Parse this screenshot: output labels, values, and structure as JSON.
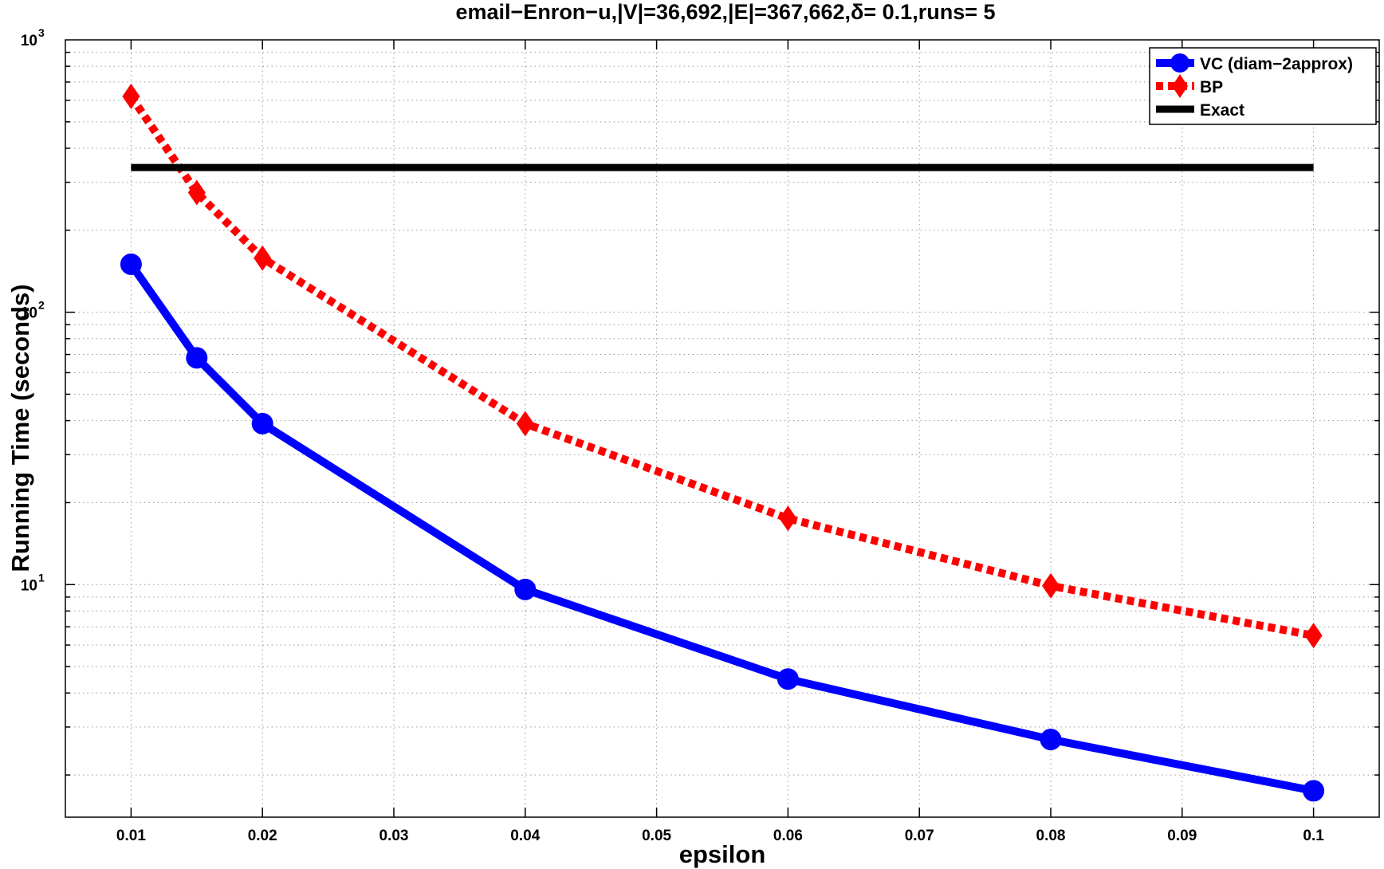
{
  "chart_data": {
    "type": "line",
    "title": "email−Enron−u,|V|=36,692,|E|=367,662,δ= 0.1,runs= 5",
    "xlabel": "epsilon",
    "ylabel": "Running Time (seconds)",
    "xlim": [
      0.005,
      0.105
    ],
    "ylim": [
      1.4,
      1000
    ],
    "yscale": "log",
    "grid": true,
    "legend_position": "top-right",
    "x_ticks": [
      "0.01",
      "0.02",
      "0.03",
      "0.04",
      "0.05",
      "0.06",
      "0.07",
      "0.08",
      "0.09",
      "0.1"
    ],
    "y_ticks": [
      {
        "value": 10,
        "base": "10",
        "exp": "1"
      },
      {
        "value": 100,
        "base": "10",
        "exp": "2"
      },
      {
        "value": 1000,
        "base": "10",
        "exp": "3"
      }
    ],
    "series": [
      {
        "name": "VC (diam−2approx)",
        "color": "#0000ff",
        "marker": "circle",
        "line_style": "solid",
        "x": [
          0.01,
          0.015,
          0.02,
          0.04,
          0.06,
          0.08,
          0.1
        ],
        "values": [
          150,
          68,
          39,
          9.6,
          4.5,
          2.7,
          1.75
        ]
      },
      {
        "name": "BP",
        "color": "#ff0000",
        "marker": "diamond",
        "line_style": "dotted",
        "x": [
          0.01,
          0.015,
          0.02,
          0.04,
          0.06,
          0.08,
          0.1
        ],
        "values": [
          620,
          275,
          158,
          39,
          17.5,
          9.9,
          6.5
        ]
      },
      {
        "name": "Exact",
        "color": "#000000",
        "marker": "none",
        "line_style": "solid",
        "x": [
          0.01,
          0.1
        ],
        "values": [
          340,
          340
        ]
      }
    ]
  }
}
